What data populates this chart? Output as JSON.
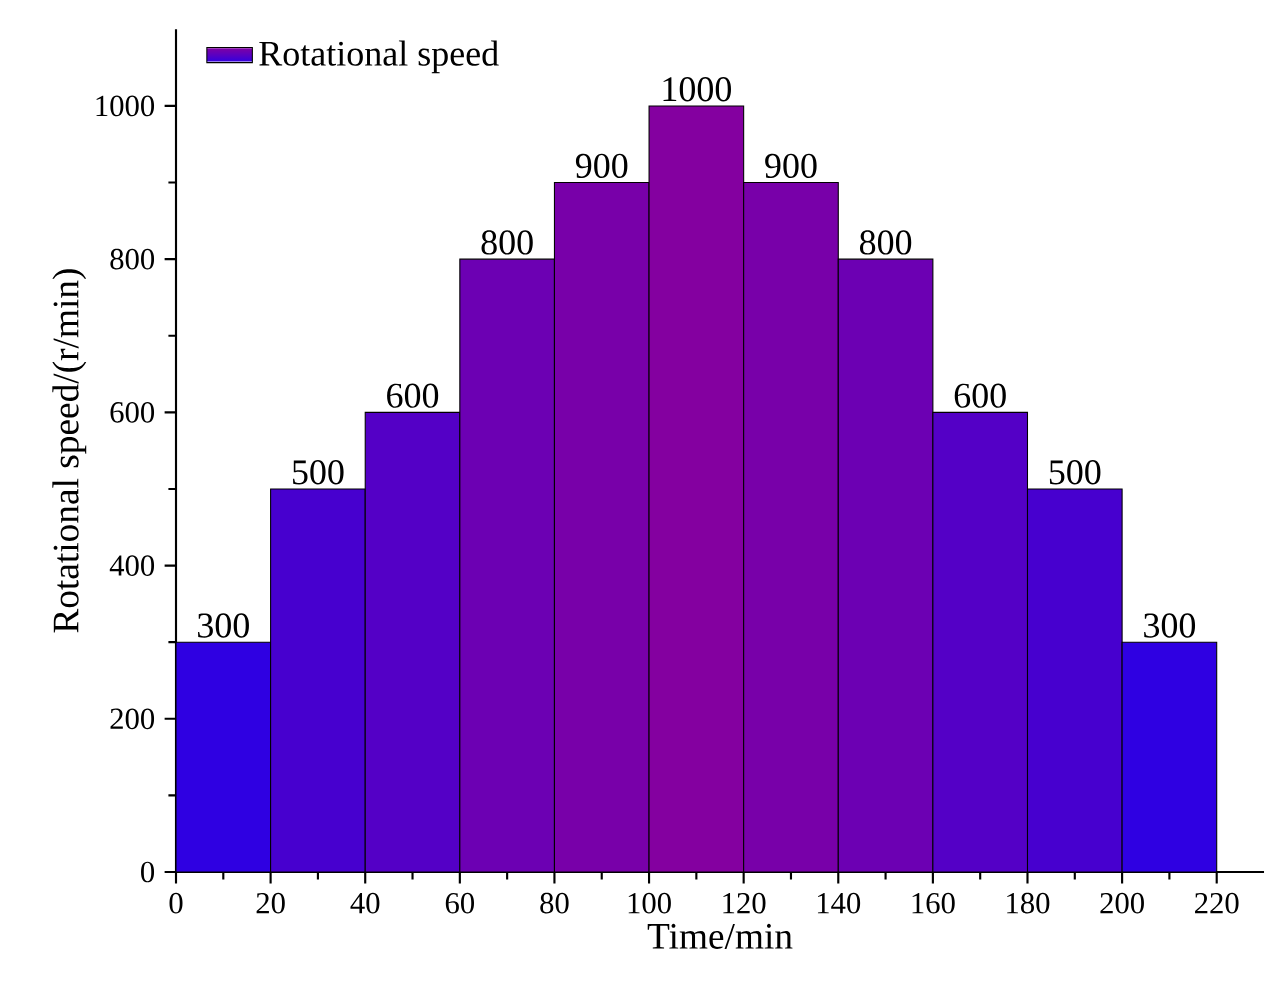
{
  "chart_data": {
    "type": "histogram",
    "xlabel": "Time/min",
    "ylabel": "Rotational speed/(r/min)",
    "bins": [
      0,
      20,
      40,
      60,
      80,
      100,
      120,
      140,
      160,
      180,
      200,
      220
    ],
    "series": [
      {
        "name": "Rotational speed",
        "values": [
          300,
          500,
          600,
          800,
          900,
          1000,
          900,
          800,
          600,
          500,
          300
        ],
        "colors": [
          "#2f00e2",
          "#4700cf",
          "#5400c6",
          "#6c00b3",
          "#7800a9",
          "#8400a0",
          "#7800a9",
          "#6c00b3",
          "#5400c6",
          "#4700cf",
          "#2f00e2"
        ],
        "value_labels": [
          "300",
          "500",
          "600",
          "800",
          "900",
          "1000",
          "900",
          "800",
          "600",
          "500",
          "300"
        ]
      }
    ],
    "xlim": [
      0,
      230
    ],
    "ylim": [
      0,
      1100
    ],
    "xticks": [
      0,
      20,
      40,
      60,
      80,
      100,
      120,
      140,
      160,
      180,
      200,
      220
    ],
    "yticks": [
      0,
      200,
      400,
      600,
      800,
      1000
    ],
    "legend": "top left",
    "grid": false
  }
}
